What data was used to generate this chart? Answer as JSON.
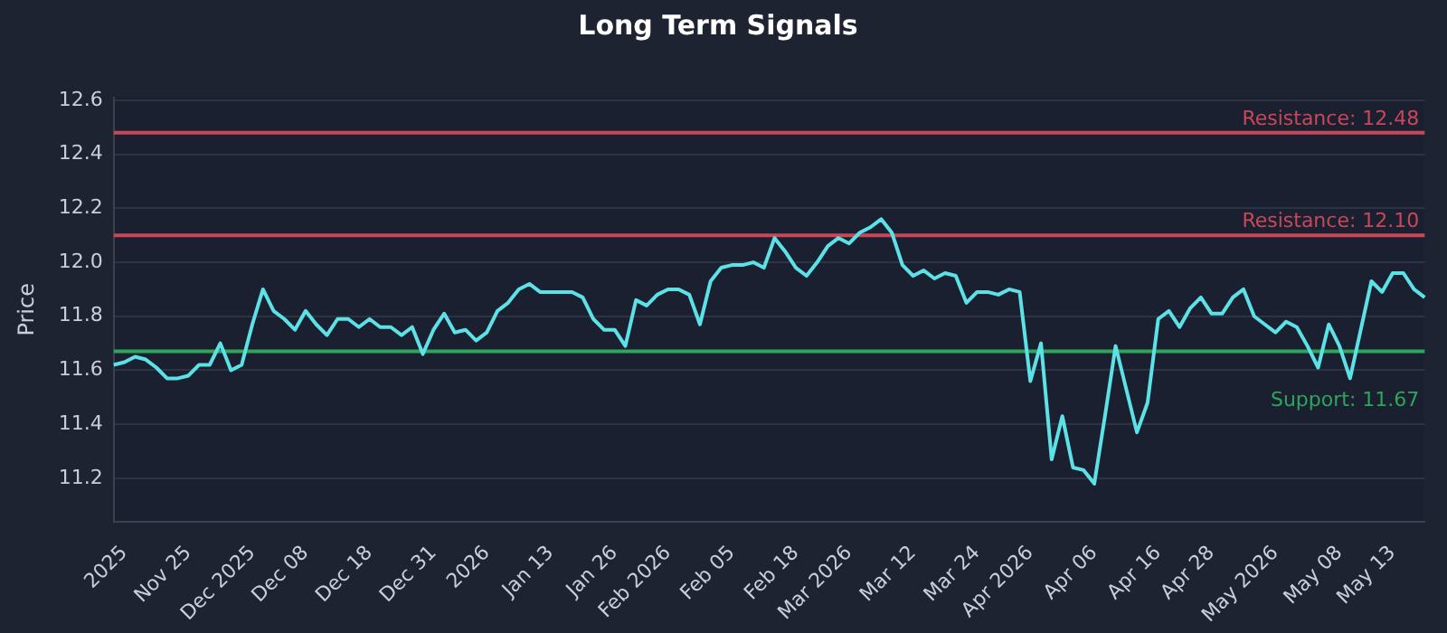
{
  "chart_data": {
    "type": "line",
    "title": "Long Term Signals",
    "ylabel": "Price",
    "categories": [
      null,
      "2025",
      null,
      null,
      null,
      null,
      null,
      "Nov 25",
      null,
      null,
      null,
      null,
      null,
      "Dec 2025",
      null,
      null,
      null,
      null,
      "Dec 08",
      null,
      null,
      null,
      null,
      null,
      "Dec 18",
      null,
      null,
      null,
      null,
      null,
      "Dec 31",
      null,
      null,
      null,
      null,
      "2026",
      null,
      null,
      null,
      null,
      null,
      "Jan 13",
      null,
      null,
      null,
      null,
      null,
      "Jan 26",
      null,
      null,
      null,
      null,
      "Feb 2026",
      null,
      null,
      null,
      null,
      null,
      "Feb 05",
      null,
      null,
      null,
      null,
      null,
      "Feb 18",
      null,
      null,
      null,
      null,
      "Mar 2026",
      null,
      null,
      null,
      null,
      null,
      "Mar 12",
      null,
      null,
      null,
      null,
      null,
      "Mar 24",
      null,
      null,
      null,
      null,
      "Apr 2026",
      null,
      null,
      null,
      null,
      null,
      "Apr 06",
      null,
      null,
      null,
      null,
      null,
      "Apr 16",
      null,
      null,
      null,
      null,
      "Apr 28",
      null,
      null,
      null,
      null,
      null,
      "May 2026",
      null,
      null,
      null,
      null,
      null,
      "May 08",
      null,
      null,
      null,
      null,
      "May 13",
      null,
      null,
      null
    ],
    "series": [
      {
        "color": "#5ce1e6",
        "values": [
          11.62,
          11.63,
          11.65,
          11.64,
          11.61,
          11.57,
          11.57,
          11.58,
          11.62,
          11.62,
          11.7,
          11.6,
          11.62,
          11.77,
          11.9,
          11.82,
          11.79,
          11.75,
          11.82,
          11.77,
          11.73,
          11.79,
          11.79,
          11.76,
          11.79,
          11.76,
          11.76,
          11.73,
          11.76,
          11.66,
          11.75,
          11.81,
          11.74,
          11.75,
          11.71,
          11.74,
          11.82,
          11.85,
          11.9,
          11.92,
          11.89,
          11.89,
          11.89,
          11.89,
          11.87,
          11.79,
          11.75,
          11.75,
          11.69,
          11.86,
          11.84,
          11.88,
          11.9,
          11.9,
          11.88,
          11.77,
          11.93,
          11.98,
          11.99,
          11.99,
          12.0,
          11.98,
          12.09,
          12.04,
          11.98,
          11.95,
          12.0,
          12.06,
          12.09,
          12.07,
          12.11,
          12.13,
          12.16,
          12.11,
          11.99,
          11.95,
          11.97,
          11.94,
          11.96,
          11.95,
          11.85,
          11.89,
          11.89,
          11.88,
          11.9,
          11.89,
          11.56,
          11.7,
          11.27,
          11.43,
          11.24,
          11.23,
          11.18,
          11.43,
          11.69,
          11.53,
          11.37,
          11.48,
          11.79,
          11.82,
          11.76,
          11.83,
          11.87,
          11.81,
          11.81,
          11.87,
          11.9,
          11.8,
          11.77,
          11.74,
          11.78,
          11.76,
          11.69,
          11.61,
          11.77,
          11.69,
          11.57,
          11.75,
          11.93,
          11.89,
          11.96,
          11.96,
          11.9,
          11.87
        ]
      }
    ],
    "ylim": [
      11.04,
      12.61
    ],
    "yticks": [
      11.2,
      11.4,
      11.6,
      11.8,
      {
        "value": 12,
        "label": "12.0"
      },
      12.2,
      12.4,
      12.6
    ],
    "ref_lines": [
      {
        "axis": "y",
        "value": 12.48,
        "label": "Resistance: 12.48",
        "color": "#c8485a"
      },
      {
        "axis": "y",
        "value": 12.1,
        "label": "Resistance: 12.10",
        "color": "#c8485a"
      },
      {
        "axis": "y",
        "value": 11.67,
        "label": "Support: 11.67",
        "color": "#2ea55a"
      }
    ],
    "grid": "y",
    "legend": false,
    "marker": "none",
    "line_style": "solid"
  }
}
